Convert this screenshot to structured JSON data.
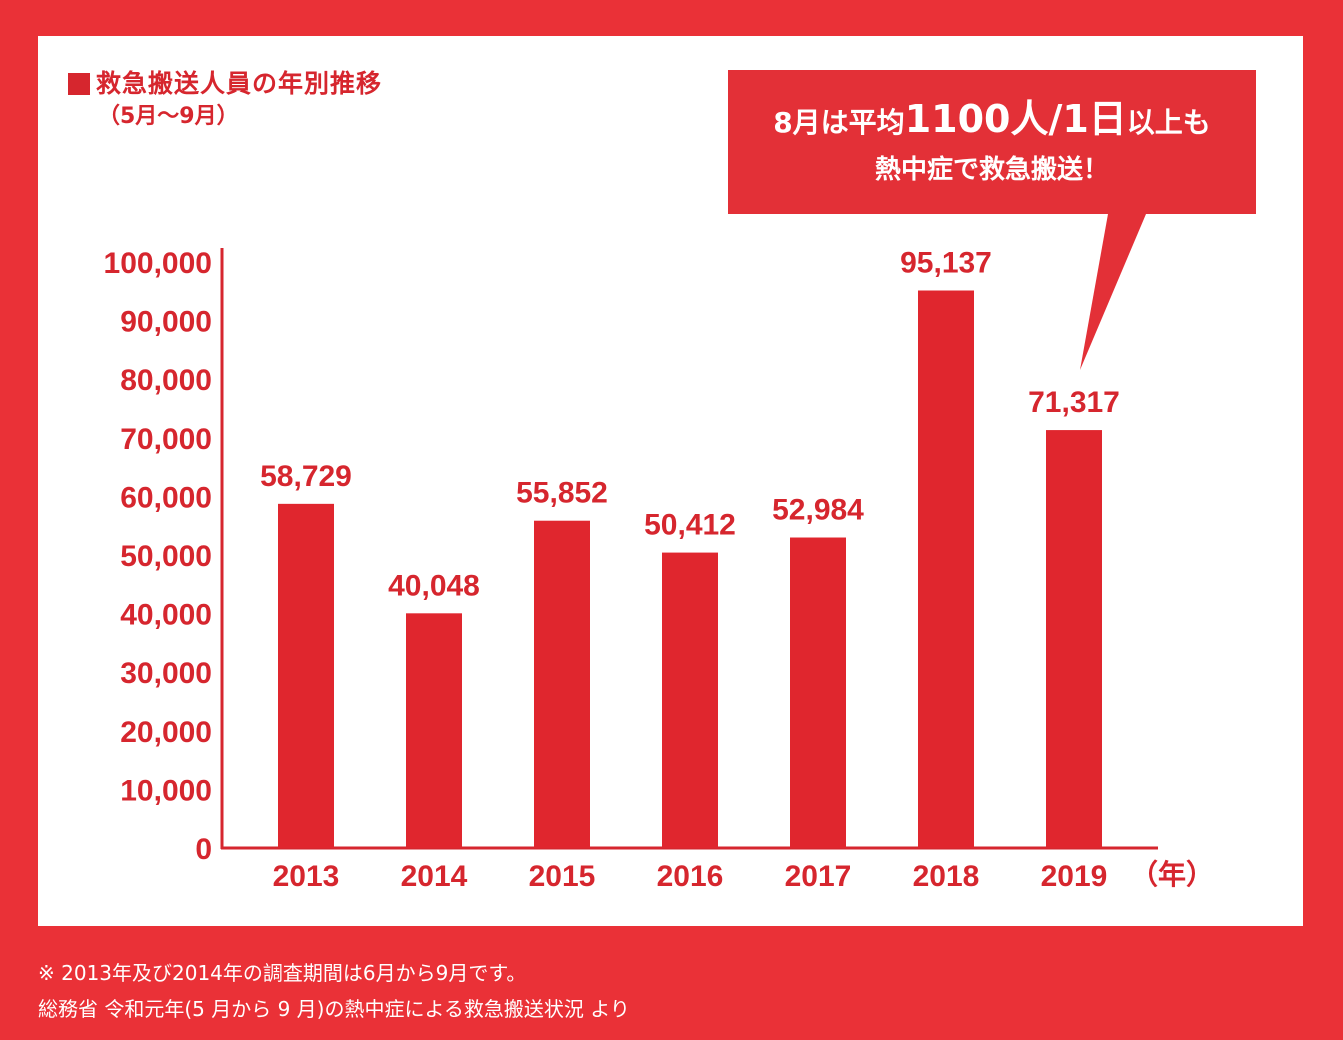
{
  "colors": {
    "background": "#ea3137",
    "panel": "#ffffff",
    "accent": "#d6262e",
    "bar": "#e0262e",
    "callout": "#e33037"
  },
  "title": "救急搬送人員の年別推移",
  "subtitle": "（5月～9月）",
  "callout": {
    "line1_prefix": "8月は平均",
    "line1_emphasis": "1100人/1日",
    "line1_suffix": "以上も",
    "line2": "熱中症で救急搬送！"
  },
  "footnotes": [
    "※ 2013年及び2014年の調査期間は6月から9月です。",
    "総務省 令和元年(5 月から 9 月)の熱中症による救急搬送状況 より"
  ],
  "chart_data": {
    "type": "bar",
    "title": "救急搬送人員の年別推移",
    "subtitle": "（5月～9月）",
    "categories": [
      "2013",
      "2014",
      "2015",
      "2016",
      "2017",
      "2018",
      "2019"
    ],
    "values": [
      58729,
      40048,
      55852,
      50412,
      52984,
      95137,
      71317
    ],
    "value_labels": [
      "58,729",
      "40,048",
      "55,852",
      "50,412",
      "52,984",
      "95,137",
      "71,317"
    ],
    "xlabel": "（年）",
    "ylabel": "",
    "ylim": [
      0,
      100000
    ],
    "yticks": [
      0,
      10000,
      20000,
      30000,
      40000,
      50000,
      60000,
      70000,
      80000,
      90000,
      100000
    ],
    "ytick_labels": [
      "0",
      "10,000",
      "20,000",
      "30,000",
      "40,000",
      "50,000",
      "60,000",
      "70,000",
      "80,000",
      "90,000",
      "100,000"
    ],
    "grid": false,
    "legend": "none"
  }
}
